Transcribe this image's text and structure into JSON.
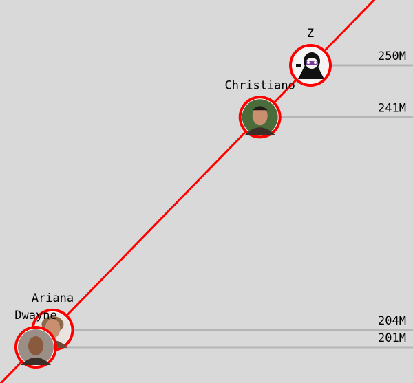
{
  "chart_data": {
    "type": "line",
    "title": "",
    "xlabel": "",
    "ylabel": "",
    "line_color": "#ff0000",
    "marker_color": "#ff0000",
    "grid_color": "#b5b5b5",
    "background": "#d9d9d9",
    "points": [
      {
        "name": "Z",
        "value": 250,
        "value_label": "250M",
        "avatar": "cartoon-avatar-icon"
      },
      {
        "name": "Christiano",
        "value": 241,
        "value_label": "241M",
        "avatar": "person-avatar-icon"
      },
      {
        "name": "Ariana",
        "value": 204,
        "value_label": "204M",
        "avatar": "person-avatar-icon"
      },
      {
        "name": "Dwayne",
        "value": 201,
        "value_label": "201M",
        "avatar": "person-avatar-icon"
      }
    ]
  }
}
